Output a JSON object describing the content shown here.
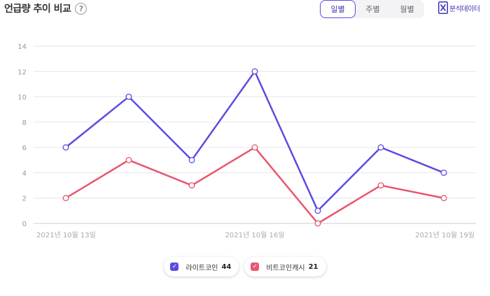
{
  "header": {
    "title": "언급량 추이 비교",
    "help_icon": "question-circle-icon",
    "tabs": [
      {
        "label": "일별",
        "active": true
      },
      {
        "label": "주별",
        "active": false
      },
      {
        "label": "월별",
        "active": false
      }
    ],
    "export_label": "분석데이터",
    "export_icon": "excel-icon"
  },
  "legend": [
    {
      "name": "라이트코인",
      "count": "44",
      "color": "#5a4ce0"
    },
    {
      "name": "비트코인캐시",
      "count": "21",
      "color": "#e8566f"
    }
  ],
  "chart_data": {
    "type": "line",
    "x": [
      "2021년 10월 13일",
      "",
      "",
      "2021년 10월 16일",
      "",
      "",
      "2021년 10월 19일"
    ],
    "x_tick_labels": [
      "2021년 10월 13일",
      "2021년 10월 16일",
      "2021년 10월 19일"
    ],
    "y_ticks": [
      0,
      2,
      4,
      6,
      8,
      10,
      12,
      14
    ],
    "ylim": [
      0,
      14
    ],
    "grid": true,
    "series": [
      {
        "name": "라이트코인",
        "color": "#5a4ce0",
        "values": [
          6,
          10,
          5,
          12,
          1,
          6,
          4
        ]
      },
      {
        "name": "비트코인캐시",
        "color": "#e8566f",
        "values": [
          2,
          5,
          3,
          6,
          0,
          3,
          2
        ]
      }
    ]
  }
}
